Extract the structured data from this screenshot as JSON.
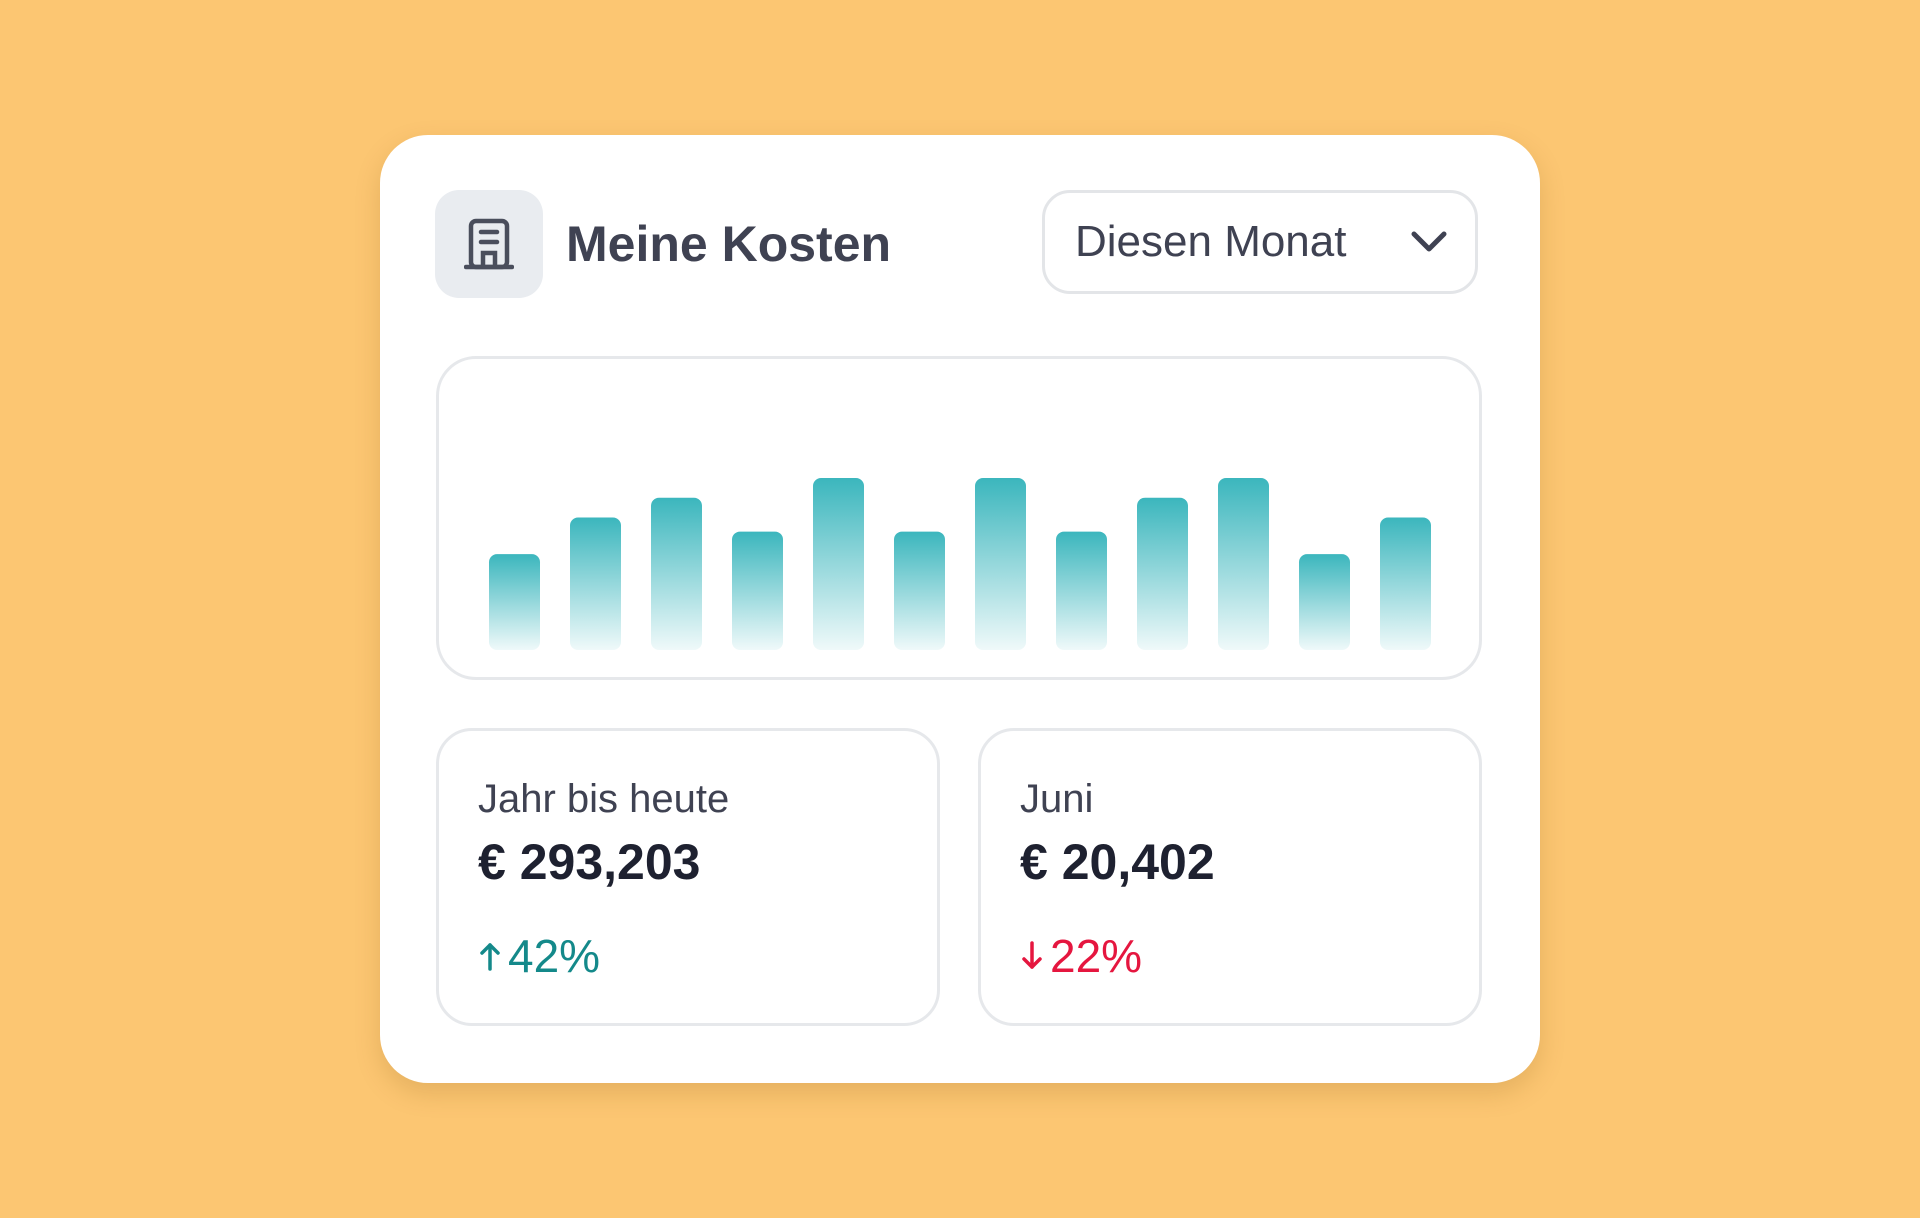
{
  "widget": {
    "title": "Meine Kosten",
    "icon": "building-icon",
    "period_select": {
      "selected": "Diesen Monat",
      "icon": "chevron-down-icon"
    }
  },
  "chart_data": {
    "type": "bar",
    "values": [
      3.4,
      4.7,
      5.4,
      4.2,
      6.1,
      4.2,
      6.1,
      4.2,
      5.4,
      6.1,
      3.4,
      4.7
    ],
    "ylim": [
      0,
      6.1
    ],
    "title": "",
    "xlabel": "",
    "ylabel": "",
    "grid": false,
    "bar_color": "#3BB6BD"
  },
  "stats": [
    {
      "label": "Jahr bis heute",
      "value": "€ 293,203",
      "change": "42%",
      "direction": "up",
      "icon": "arrow-up-icon",
      "color": "#14898A"
    },
    {
      "label": "Juni",
      "value": "€ 20,402",
      "change": "22%",
      "direction": "down",
      "icon": "arrow-down-icon",
      "color": "#E5163F"
    }
  ],
  "colors": {
    "background": "#FCC672",
    "accent": "#3BB6BD",
    "positive": "#14898A",
    "negative": "#E5163F"
  }
}
